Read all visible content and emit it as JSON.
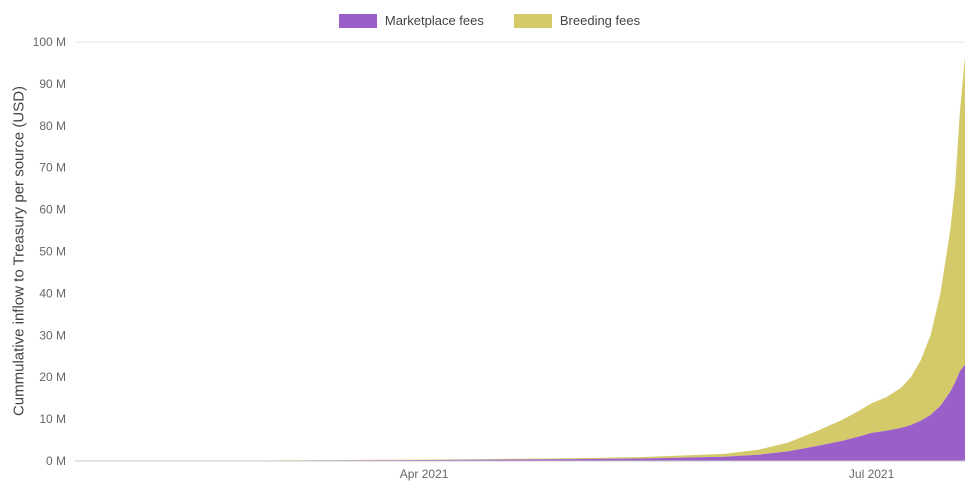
{
  "page": {
    "background": "#ffffff"
  },
  "chart_data": {
    "type": "area",
    "stacked": true,
    "title": "",
    "xlabel": "",
    "ylabel": "Cummulative inflow to Treasury per source (USD)",
    "ylim": [
      0,
      100
    ],
    "y_unit": "M (millions USD)",
    "grid": "minimal",
    "legend_position": "top-center",
    "x": [
      "2021-01-20",
      "2021-02-01",
      "2021-02-15",
      "2021-03-01",
      "2021-03-15",
      "2021-04-01",
      "2021-04-15",
      "2021-05-01",
      "2021-05-15",
      "2021-06-01",
      "2021-06-08",
      "2021-06-14",
      "2021-06-20",
      "2021-06-25",
      "2021-06-28",
      "2021-07-01",
      "2021-07-04",
      "2021-07-07",
      "2021-07-09",
      "2021-07-11",
      "2021-07-13",
      "2021-07-15",
      "2021-07-17",
      "2021-07-18",
      "2021-07-19",
      "2021-07-20"
    ],
    "series": [
      {
        "name": "Marketplace fees",
        "color": "#9a5fc9",
        "values": [
          0,
          0.02,
          0.05,
          0.1,
          0.16,
          0.24,
          0.33,
          0.45,
          0.6,
          1.0,
          1.5,
          2.3,
          3.6,
          4.8,
          5.7,
          6.7,
          7.2,
          7.9,
          8.6,
          9.6,
          11.0,
          13.2,
          16.5,
          18.8,
          21.5,
          23.0
        ]
      },
      {
        "name": "Breeding fees",
        "color": "#d4ca6a",
        "values": [
          0,
          0.01,
          0.02,
          0.04,
          0.07,
          0.1,
          0.15,
          0.22,
          0.33,
          0.7,
          1.2,
          2.1,
          3.6,
          5.0,
          6.0,
          7.1,
          8.0,
          9.6,
          11.4,
          14.4,
          19.0,
          26.8,
          38.5,
          47.2,
          62.5,
          73.5
        ]
      }
    ],
    "y_ticks": [
      {
        "value": 0,
        "label": "0 M"
      },
      {
        "value": 10,
        "label": "10 M"
      },
      {
        "value": 20,
        "label": "20 M"
      },
      {
        "value": 30,
        "label": "30 M"
      },
      {
        "value": 40,
        "label": "40 M"
      },
      {
        "value": 50,
        "label": "50 M"
      },
      {
        "value": 60,
        "label": "60 M"
      },
      {
        "value": 70,
        "label": "70 M"
      },
      {
        "value": 80,
        "label": "80 M"
      },
      {
        "value": 90,
        "label": "90 M"
      },
      {
        "value": 100,
        "label": "100 M"
      }
    ],
    "x_ticks": [
      {
        "date": "2021-04-01",
        "label": "Apr 2021"
      },
      {
        "date": "2021-07-01",
        "label": "Jul 2021"
      }
    ]
  }
}
